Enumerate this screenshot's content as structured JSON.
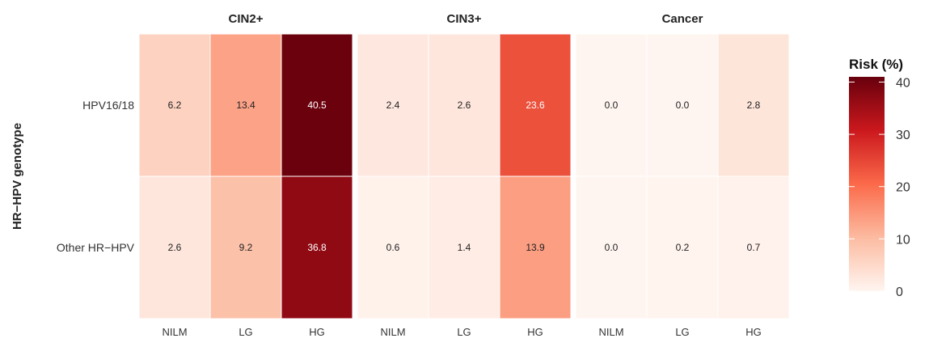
{
  "chart_data": {
    "type": "heatmap",
    "facets": [
      "CIN2+",
      "CIN3+",
      "Cancer"
    ],
    "columns": [
      "NILM",
      "LG",
      "HG"
    ],
    "rows": [
      "HPV16/18",
      "Other HR−HPV"
    ],
    "ylabel": "HR−HPV genotype",
    "values": {
      "CIN2+": [
        [
          6.2,
          13.4,
          40.5
        ],
        [
          2.6,
          9.2,
          36.8
        ]
      ],
      "CIN3+": [
        [
          2.4,
          2.6,
          23.6
        ],
        [
          0.6,
          1.4,
          13.9
        ]
      ],
      "Cancer": [
        [
          0.0,
          0.0,
          2.8
        ],
        [
          0.0,
          0.2,
          0.7
        ]
      ]
    },
    "labels": {
      "CIN2+": [
        [
          "6.2",
          "13.4",
          "40.5"
        ],
        [
          "2.6",
          "9.2",
          "36.8"
        ]
      ],
      "CIN3+": [
        [
          "2.4",
          "2.6",
          "23.6"
        ],
        [
          "0.6",
          "1.4",
          "13.9"
        ]
      ],
      "Cancer": [
        [
          "0.0",
          "0.0",
          "2.8"
        ],
        [
          "0.0",
          "0.2",
          "0.7"
        ]
      ]
    },
    "legend": {
      "title": "Risk (%)",
      "ticks": [
        0,
        10,
        20,
        30,
        40
      ],
      "range": [
        0,
        41
      ],
      "colors": [
        "#fff5f0",
        "#fcbba1",
        "#fb6a4a",
        "#cb181d",
        "#67000d"
      ],
      "placement": "right"
    }
  }
}
